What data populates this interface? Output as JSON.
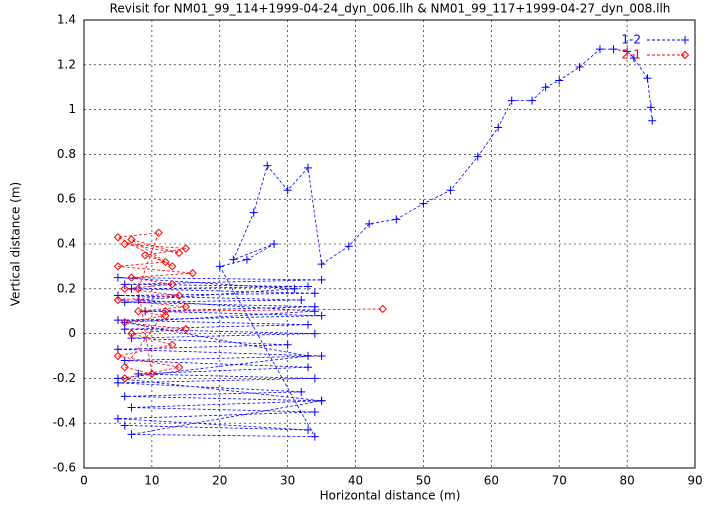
{
  "chart_data": {
    "type": "line",
    "title": "Revisit for NM01_99_114+1999-04-24_dyn_006.llh & NM01_99_117+1999-04-27_dyn_008.llh",
    "x_label": "Horizontal distance (m)",
    "y_label": "Vertical distance (m)",
    "xlim": [
      0,
      90
    ],
    "xticks": [
      0,
      10,
      20,
      30,
      40,
      50,
      60,
      70,
      80,
      90
    ],
    "ylim": [
      -0.6,
      1.4
    ],
    "yticks": [
      -0.6,
      -0.4,
      -0.2,
      0,
      0.2,
      0.4,
      0.6,
      0.8,
      1,
      1.2,
      1.4
    ],
    "grid": true,
    "legend": "top-right",
    "series": [
      {
        "name": "1-2",
        "color": "#0000ff",
        "marker": "plus",
        "x": [
          6,
          33,
          5,
          34,
          7,
          35,
          6,
          32,
          5,
          34,
          8,
          33,
          6,
          35,
          5,
          30,
          7,
          34,
          6,
          33,
          5,
          35,
          9,
          34,
          6,
          32,
          5,
          34,
          7,
          33,
          6,
          35,
          5,
          31,
          8,
          34,
          6,
          33,
          5,
          35,
          7,
          34,
          20,
          24,
          28,
          22,
          25,
          27,
          30,
          33,
          35,
          39,
          42,
          46,
          50,
          54,
          58,
          61,
          63,
          66,
          68,
          70,
          73,
          76,
          78,
          80,
          81,
          83,
          83.5,
          83.7
        ],
        "values": [
          -0.41,
          -0.43,
          -0.38,
          -0.35,
          -0.33,
          -0.3,
          -0.28,
          -0.26,
          -0.22,
          -0.2,
          -0.18,
          -0.15,
          -0.12,
          -0.1,
          -0.07,
          -0.05,
          -0.02,
          0,
          0.02,
          0.04,
          0.06,
          0.08,
          0.1,
          0.12,
          0.14,
          0.15,
          0.17,
          0.18,
          0.2,
          0.21,
          0.22,
          0.24,
          0.25,
          0.2,
          0.15,
          0.1,
          0.05,
          -0.1,
          -0.2,
          -0.3,
          -0.45,
          -0.46,
          0.3,
          0.33,
          0.4,
          0.33,
          0.54,
          0.75,
          0.64,
          0.74,
          0.31,
          0.39,
          0.49,
          0.51,
          0.58,
          0.64,
          0.79,
          0.92,
          1.04,
          1.04,
          1.1,
          1.13,
          1.19,
          1.27,
          1.27,
          1.26,
          1.23,
          1.14,
          1.01,
          0.95
        ]
      },
      {
        "name": "2-1",
        "color": "#ff0000",
        "marker": "diamond",
        "x": [
          6,
          14,
          5,
          13,
          7,
          15,
          6,
          12,
          8,
          15,
          5,
          14,
          6,
          13,
          7,
          16,
          5,
          12,
          9,
          15,
          6,
          14,
          7,
          13,
          5,
          11,
          8,
          10,
          6,
          12,
          44
        ],
        "values": [
          -0.2,
          -0.15,
          -0.1,
          -0.05,
          0,
          0.02,
          0.05,
          0.08,
          0.1,
          0.12,
          0.15,
          0.17,
          0.2,
          0.22,
          0.25,
          0.27,
          0.3,
          0.32,
          0.35,
          0.38,
          0.4,
          0.36,
          0.42,
          0.3,
          0.43,
          0.45,
          0.2,
          -0.18,
          -0.15,
          0.1,
          0.11
        ]
      }
    ]
  }
}
